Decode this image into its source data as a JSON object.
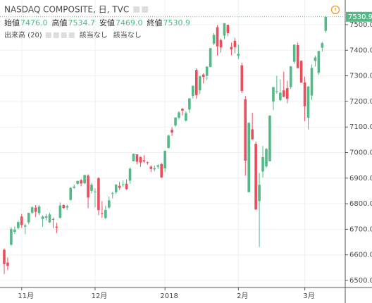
{
  "chart_data": {
    "type": "candlestick",
    "title": "NASDAQ COMPOSITE, 日, TVC",
    "ohlc_header": {
      "labels": [
        "始値",
        "高値",
        "安値",
        "終値"
      ],
      "value_labels": [
        "7476.0",
        "7534.7",
        "7469.0",
        "7530.9"
      ]
    },
    "indicator": {
      "label": "出来高 (20)",
      "values": [
        "該当なし",
        "該当なし"
      ]
    },
    "up_color": "#53b987",
    "down_color": "#eb4d5c",
    "grid": true,
    "ylim": [
      6470,
      7570
    ],
    "yticks": [
      {
        "value": 6500,
        "label": "6500.0"
      },
      {
        "value": 6600,
        "label": "6600.0"
      },
      {
        "value": 6700,
        "label": "6700.0"
      },
      {
        "value": 6800,
        "label": "6800.0"
      },
      {
        "value": 6900,
        "label": "6900.0"
      },
      {
        "value": 7000,
        "label": "7000.0"
      },
      {
        "value": 7100,
        "label": "7100.0"
      },
      {
        "value": 7200,
        "label": "7200.0"
      },
      {
        "value": 7300,
        "label": "7300.0"
      },
      {
        "value": 7400,
        "label": "7400.0"
      },
      {
        "value": 7500,
        "label": "7500.0"
      }
    ],
    "categories": [
      null,
      null,
      null,
      null,
      null,
      "11月",
      null,
      null,
      null,
      null,
      null,
      null,
      null,
      null,
      null,
      null,
      null,
      null,
      null,
      null,
      null,
      null,
      null,
      null,
      null,
      null,
      "12月",
      null,
      null,
      null,
      null,
      null,
      null,
      null,
      null,
      null,
      null,
      null,
      null,
      null,
      null,
      null,
      null,
      null,
      null,
      null,
      "2018",
      null,
      null,
      null,
      null,
      null,
      null,
      null,
      null,
      null,
      null,
      null,
      null,
      null,
      null,
      null,
      null,
      null,
      null,
      null,
      null,
      "2月",
      null,
      null,
      null,
      null,
      null,
      null,
      null,
      null,
      null,
      null,
      null,
      null,
      null,
      null,
      null,
      null,
      null,
      null,
      "3月",
      null,
      null,
      null,
      null,
      null,
      null
    ],
    "open": [
      6620,
      6570,
      6640,
      6690,
      6705,
      6750,
      6710,
      6727,
      6765,
      6785,
      6763,
      6740,
      6745,
      6727,
      6740,
      6710,
      6745,
      6795,
      6785,
      6815,
      6862,
      6878,
      6892,
      6880,
      6910,
      6850,
      6845,
      6900,
      6763,
      6744,
      6785,
      6838,
      6845,
      6870,
      6874,
      6878,
      6890,
      6966,
      6993,
      6983,
      6970,
      6962,
      6945,
      6934,
      6945,
      6955,
      6938,
      7018,
      7089,
      7106,
      7136,
      7171,
      7125,
      7168,
      7222,
      7323,
      7243,
      7305,
      7300,
      7335,
      7426,
      7490,
      7440,
      7457,
      7499,
      7413,
      7437,
      7378,
      7341,
      7208,
      6845,
      7091,
      7034,
      6810,
      6926,
      6946,
      6966,
      7199,
      7238,
      7205,
      7243,
      7252,
      7256,
      7355,
      7420,
      7359,
      7274,
      7136,
      7223,
      7358,
      7312,
      7410,
      7476
    ],
    "high": [
      6625,
      6590,
      6708,
      6712,
      6733,
      6760,
      6722,
      6765,
      6790,
      6795,
      6795,
      6755,
      6760,
      6765,
      6745,
      6725,
      6805,
      6797,
      6796,
      6865,
      6875,
      6890,
      6897,
      6914,
      6915,
      6881,
      6860,
      6904,
      6810,
      6793,
      6828,
      6847,
      6876,
      6885,
      6891,
      6895,
      6942,
      6996,
      6993,
      6984,
      6990,
      6965,
      6950,
      6949,
      6955,
      6960,
      7007,
      7070,
      7099,
      7138,
      7162,
      7174,
      7161,
      7212,
      7262,
      7329,
      7301,
      7310,
      7337,
      7409,
      7467,
      7498,
      7445,
      7506,
      7500,
      7430,
      7449,
      7422,
      7352,
      7221,
      7118,
      7156,
      7043,
      6920,
      7026,
      7018,
      7146,
      7256,
      7300,
      7286,
      7316,
      7281,
      7338,
      7422,
      7430,
      7360,
      7297,
      7260,
      7345,
      7379,
      7398,
      7432,
      7534.7
    ],
    "low": [
      6525,
      6540,
      6635,
      6682,
      6700,
      6705,
      6680,
      6720,
      6760,
      6748,
      6755,
      6710,
      6735,
      6725,
      6705,
      6685,
      6742,
      6780,
      6775,
      6812,
      6858,
      6874,
      6868,
      6876,
      6783,
      6840,
      6786,
      6755,
      6745,
      6740,
      6780,
      6820,
      6838,
      6854,
      6865,
      6854,
      6878,
      6966,
      6954,
      6944,
      6960,
      6952,
      6924,
      6927,
      6936,
      6900,
      6925,
      7016,
      7065,
      7100,
      7130,
      7144,
      7120,
      7156,
      7212,
      7210,
      7228,
      7270,
      7283,
      7333,
      7420,
      7379,
      7391,
      7443,
      7455,
      7380,
      7388,
      7365,
      7233,
      6910,
      6846,
      7048,
      6777,
      6631,
      6902,
      6940,
      6966,
      7166,
      7230,
      7201,
      7216,
      7193,
      7249,
      7347,
      7330,
      7273,
      7123,
      7091,
      7206,
      7336,
      7304,
      7395,
      7469
    ],
    "close": [
      6564,
      6557,
      6701,
      6699,
      6728,
      6717,
      6715,
      6764,
      6786,
      6768,
      6789,
      6750,
      6751,
      6758,
      6738,
      6706,
      6793,
      6783,
      6791,
      6862,
      6867,
      6889,
      6879,
      6912,
      6824,
      6874,
      6848,
      6775,
      6762,
      6776,
      6813,
      6841,
      6875,
      6862,
      6876,
      6857,
      6937,
      6995,
      6964,
      6961,
      6965,
      6960,
      6936,
      6939,
      6950,
      6903,
      7007,
      7066,
      7078,
      7137,
      7157,
      7164,
      7154,
      7212,
      7261,
      7224,
      7298,
      7296,
      7336,
      7408,
      7460,
      7415,
      7411,
      7506,
      7467,
      7403,
      7412,
      7386,
      7241,
      6968,
      7116,
      7052,
      6777,
      6874,
      6982,
      7014,
      7144,
      7256,
      7240,
      7234,
      7218,
      7210,
      7337,
      7422,
      7330,
      7273,
      7181,
      7258,
      7331,
      7372,
      7397,
      7428,
      7530.9
    ]
  }
}
